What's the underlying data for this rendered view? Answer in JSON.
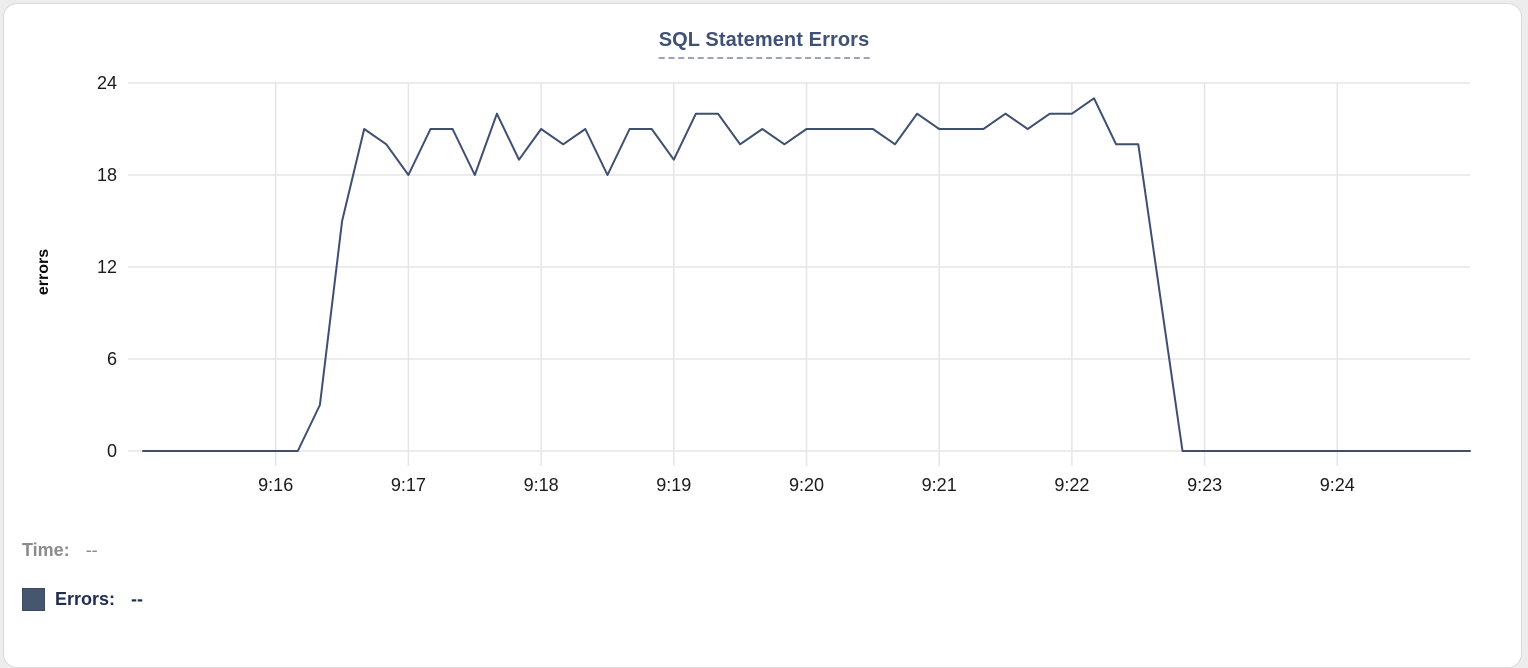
{
  "panel": {
    "title": "SQL Statement Errors"
  },
  "tooltip_readout": {
    "time_label": "Time:",
    "time_value": "--",
    "errors_label": "Errors:",
    "errors_value": "--",
    "swatch_color": "#47566f"
  },
  "colors": {
    "title_navy": "#3f5177",
    "title_underline": "#9aa3ba",
    "line": "#3e4f70",
    "grid": "#e5e5e5",
    "tick_text": "#1b1b1b",
    "muted_gray": "#8b8b8b",
    "errors_text": "#222d52",
    "card_border": "#d9d9d9"
  },
  "chart_data": {
    "type": "line",
    "title": "SQL Statement Errors",
    "xlabel": "",
    "ylabel": "errors",
    "ylim": [
      0,
      24
    ],
    "y_ticks": [
      0,
      6,
      12,
      18,
      24
    ],
    "x_tick_labels": [
      "9:16",
      "9:17",
      "9:18",
      "9:19",
      "9:20",
      "9:21",
      "9:22",
      "9:23",
      "9:24"
    ],
    "grid": "on",
    "legend_position": "bottom-left",
    "series": [
      {
        "name": "Errors",
        "color": "#3e4f70",
        "x": [
          "9:15:00",
          "9:15:10",
          "9:15:20",
          "9:15:30",
          "9:15:40",
          "9:15:50",
          "9:16:00",
          "9:16:10",
          "9:16:20",
          "9:16:30",
          "9:16:40",
          "9:16:50",
          "9:17:00",
          "9:17:10",
          "9:17:20",
          "9:17:30",
          "9:17:40",
          "9:17:50",
          "9:18:00",
          "9:18:10",
          "9:18:20",
          "9:18:30",
          "9:18:40",
          "9:18:50",
          "9:19:00",
          "9:19:10",
          "9:19:20",
          "9:19:30",
          "9:19:40",
          "9:19:50",
          "9:20:00",
          "9:20:10",
          "9:20:20",
          "9:20:30",
          "9:20:40",
          "9:20:50",
          "9:21:00",
          "9:21:10",
          "9:21:20",
          "9:21:30",
          "9:21:40",
          "9:21:50",
          "9:22:00",
          "9:22:10",
          "9:22:20",
          "9:22:30",
          "9:22:40",
          "9:22:50",
          "9:23:00",
          "9:23:10",
          "9:23:20",
          "9:23:30",
          "9:23:40",
          "9:23:50",
          "9:24:00",
          "9:24:10",
          "9:24:20",
          "9:24:30",
          "9:24:40",
          "9:24:50",
          "9:25:00"
        ],
        "values": [
          0,
          0,
          0,
          0,
          0,
          0,
          0,
          0,
          3,
          15,
          21,
          20,
          18,
          21,
          21,
          18,
          22,
          19,
          21,
          20,
          21,
          18,
          21,
          21,
          19,
          22,
          22,
          20,
          21,
          20,
          21,
          21,
          21,
          21,
          20,
          22,
          21,
          21,
          21,
          22,
          21,
          22,
          22,
          23,
          20,
          20,
          10,
          0,
          0,
          0,
          0,
          0,
          0,
          0,
          0,
          0,
          0,
          0,
          0,
          0,
          0
        ]
      }
    ]
  }
}
